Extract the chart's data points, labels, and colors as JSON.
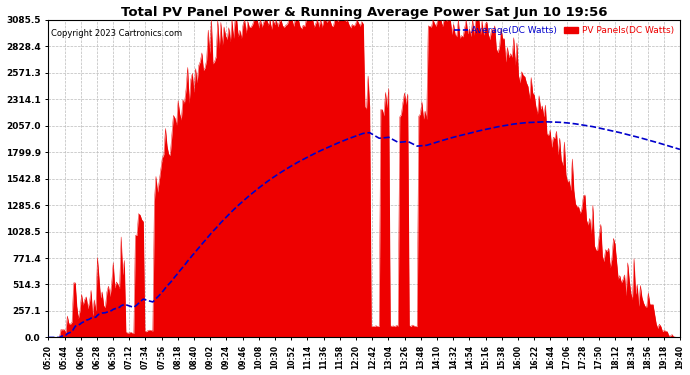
{
  "title": "Total PV Panel Power & Running Average Power Sat Jun 10 19:56",
  "copyright": "Copyright 2023 Cartronics.com",
  "legend_avg": "Average(DC Watts)",
  "legend_pv": "PV Panels(DC Watts)",
  "y_max": 3085.5,
  "y_ticks": [
    0.0,
    257.1,
    514.3,
    771.4,
    1028.5,
    1285.6,
    1542.8,
    1799.9,
    2057.0,
    2314.1,
    2571.3,
    2828.4,
    3085.5
  ],
  "x_labels": [
    "05:20",
    "05:44",
    "06:06",
    "06:28",
    "06:50",
    "07:12",
    "07:34",
    "07:56",
    "08:18",
    "08:40",
    "09:02",
    "09:24",
    "09:46",
    "10:08",
    "10:30",
    "10:52",
    "11:14",
    "11:36",
    "11:58",
    "12:20",
    "12:42",
    "13:04",
    "13:26",
    "13:48",
    "14:10",
    "14:32",
    "14:54",
    "15:16",
    "15:38",
    "16:00",
    "16:22",
    "16:44",
    "17:06",
    "17:28",
    "17:50",
    "18:12",
    "18:34",
    "18:56",
    "19:18",
    "19:40"
  ],
  "background_color": "#ffffff",
  "grid_color": "#bbbbbb",
  "pv_color": "#ee0000",
  "avg_color": "#0000cc",
  "title_color": "#000000",
  "copyright_color": "#000000"
}
